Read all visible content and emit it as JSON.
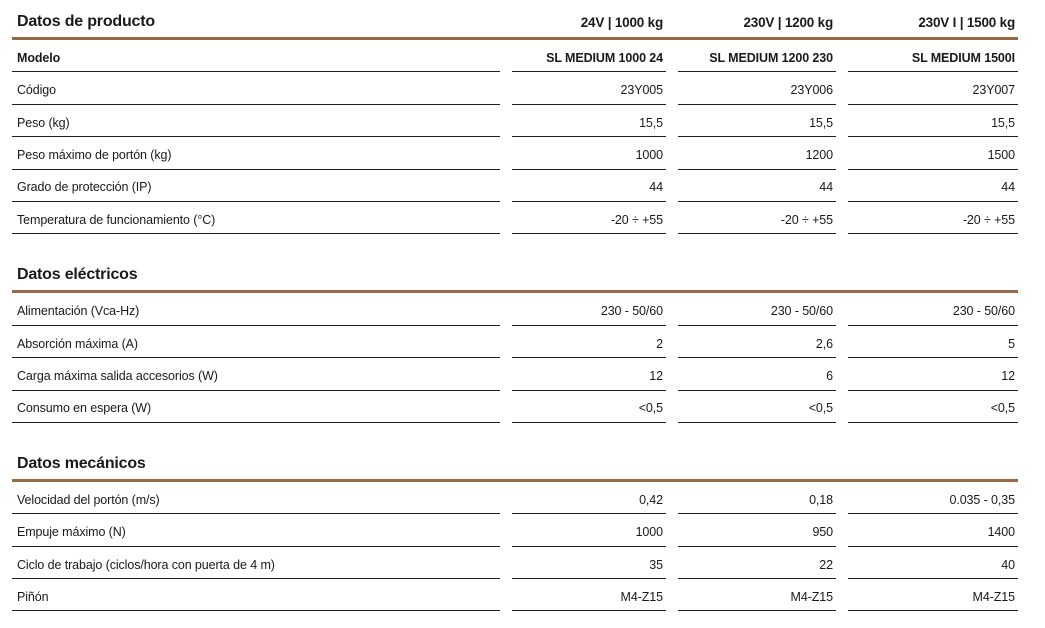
{
  "colors": {
    "accent_line": "#966a44",
    "row_line": "#1f1f1f",
    "text": "#1a1a1a",
    "background": "#ffffff"
  },
  "columns": [
    "24V | 1000 kg",
    "230V | 1200 kg",
    "230V I | 1500 kg"
  ],
  "sections": [
    {
      "title": "Datos de producto",
      "rows": [
        {
          "label": "Modelo",
          "bold": true,
          "values": [
            "SL MEDIUM 1000 24",
            "SL MEDIUM 1200 230",
            "SL MEDIUM 1500I"
          ]
        },
        {
          "label": "Código",
          "values": [
            "23Y005",
            "23Y006",
            "23Y007"
          ]
        },
        {
          "label": "Peso (kg)",
          "values": [
            "15,5",
            "15,5",
            "15,5"
          ]
        },
        {
          "label": "Peso máximo de portón (kg)",
          "values": [
            "1000",
            "1200",
            "1500"
          ]
        },
        {
          "label": "Grado de protección (IP)",
          "values": [
            "44",
            "44",
            "44"
          ]
        },
        {
          "label": "Temperatura de funcionamiento (°C)",
          "values": [
            "-20 ÷ +55",
            "-20 ÷ +55",
            "-20 ÷ +55"
          ]
        }
      ]
    },
    {
      "title": "Datos eléctricos",
      "rows": [
        {
          "label": "Alimentación (Vca-Hz)",
          "values": [
            "230 - 50/60",
            "230 - 50/60",
            "230 - 50/60"
          ]
        },
        {
          "label": "Absorción máxima (A)",
          "values": [
            "2",
            "2,6",
            "5"
          ]
        },
        {
          "label": "Carga máxima salida accesorios (W)",
          "values": [
            "12",
            "6",
            "12"
          ]
        },
        {
          "label": "Consumo en espera (W)",
          "values": [
            "<0,5",
            "<0,5",
            "<0,5"
          ]
        }
      ]
    },
    {
      "title": "Datos mecánicos",
      "rows": [
        {
          "label": "Velocidad del portón (m/s)",
          "values": [
            "0,42",
            "0,18",
            "0.035 - 0,35"
          ]
        },
        {
          "label": "Empuje máximo (N)",
          "values": [
            "1000",
            "950",
            "1400"
          ]
        },
        {
          "label": "Ciclo de trabajo (ciclos/hora con puerta de 4 m)",
          "values": [
            "35",
            "22",
            "40"
          ]
        },
        {
          "label": "Piñón",
          "values": [
            "M4-Z15",
            "M4-Z15",
            "M4-Z15"
          ]
        }
      ]
    }
  ]
}
